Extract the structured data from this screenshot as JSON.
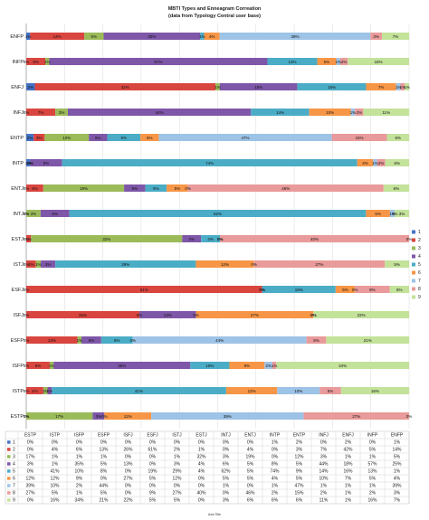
{
  "chart_data": {
    "type": "bar",
    "stacked": "percent",
    "orientation": "horizontal",
    "title": "MBTI Types and Enneagram Correation",
    "subtitle": "(data from Typology Central user base)",
    "xlabel": "Axis Title",
    "ylabel": "",
    "categories": [
      "ENFP",
      "INFP",
      "ENFJ",
      "INFJ",
      "ENTP",
      "INTP",
      "ENTJ",
      "INTJ",
      "ESTJ",
      "ISTJ",
      "ESFJ",
      "ISFJ",
      "ESFP",
      "ISFP",
      "ISTP",
      "ESTP"
    ],
    "colors": [
      "#4472c4",
      "#d9453f",
      "#9bbb59",
      "#7e57a8",
      "#4bacc6",
      "#f79646",
      "#9dc3e6",
      "#e99a9a",
      "#c3e29a"
    ],
    "series": [
      {
        "name": "1",
        "values": [
          1,
          0,
          2,
          0,
          2,
          1,
          0,
          0,
          0,
          0,
          0,
          0,
          0,
          0,
          0,
          0
        ]
      },
      {
        "name": "2",
        "values": [
          14,
          5,
          42,
          7,
          3,
          0,
          4,
          0,
          1,
          2,
          61,
          26,
          13,
          6,
          4,
          0
        ]
      },
      {
        "name": "3",
        "values": [
          5,
          1,
          1,
          3,
          12,
          0,
          19,
          3,
          32,
          1,
          0,
          0,
          1,
          1,
          1,
          17
        ]
      },
      {
        "name": "4",
        "values": [
          25,
          57,
          18,
          44,
          5,
          8,
          5,
          6,
          4,
          3,
          0,
          13,
          5,
          35,
          1,
          3
        ]
      },
      {
        "name": "5",
        "values": [
          1,
          13,
          16,
          14,
          9,
          74,
          5,
          62,
          4,
          29,
          19,
          0,
          8,
          10,
          41,
          0
        ]
      },
      {
        "name": "6",
        "values": [
          4,
          5,
          7,
          10,
          5,
          4,
          5,
          5,
          0,
          12,
          5,
          27,
          0,
          9,
          12,
          12
        ]
      },
      {
        "name": "7",
        "values": [
          39,
          1,
          1,
          1,
          47,
          1,
          0,
          1,
          0,
          0,
          0,
          0,
          44,
          2,
          10,
          39
        ]
      },
      {
        "name": "8",
        "values": [
          3,
          2,
          1,
          2,
          15,
          2,
          46,
          0,
          40,
          27,
          9,
          0,
          5,
          1,
          5,
          27
        ]
      },
      {
        "name": "9",
        "values": [
          7,
          16,
          1,
          11,
          6,
          6,
          6,
          3,
          0,
          5,
          5,
          22,
          21,
          34,
          16,
          0
        ]
      }
    ],
    "segment_labels": [
      [
        "1%",
        "14%",
        "5%",
        "25%",
        "1%",
        "4%",
        "39%",
        "3%",
        "7%"
      ],
      [
        "0%",
        "5%",
        "1%",
        "57%",
        "13%",
        "5%",
        "1%",
        "2%",
        "16%"
      ],
      [
        "2%",
        "42%",
        "1%",
        "18%",
        "16%",
        "7%",
        "1%",
        "1%",
        "1%"
      ],
      [
        "0%",
        "7%",
        "3%",
        "44%",
        "14%",
        "10%",
        "1%",
        "2%",
        "11%"
      ],
      [
        "2%",
        "3%",
        "12%",
        "5%",
        "9%",
        "5%",
        "47%",
        "15%",
        "6%"
      ],
      [
        "1%",
        "0%",
        "0%",
        "8%",
        "74%",
        "4%",
        "1%",
        "2%",
        "6%"
      ],
      [
        "0%",
        "4%",
        "19%",
        "5%",
        "5%",
        "5%",
        "0%",
        "46%",
        "6%"
      ],
      [
        "0%",
        "0%",
        "3%",
        "6%",
        "62%",
        "5%",
        "1%",
        "0%",
        "3%"
      ],
      [
        "0%",
        "1%",
        "32%",
        "4%",
        "4%",
        "0%",
        "0%",
        "40%",
        "0%"
      ],
      [
        "0%",
        "2%",
        "1%",
        "3%",
        "29%",
        "12%",
        "0%",
        "27%",
        "5%"
      ],
      [
        "0%",
        "61%",
        "0%",
        "0%",
        "19%",
        "5%",
        "0%",
        "9%",
        "5%"
      ],
      [
        "0%",
        "26%",
        "0%",
        "13%",
        "0%",
        "27%",
        "0%",
        "0%",
        "22%"
      ],
      [
        "0%",
        "13%",
        "1%",
        "5%",
        "8%",
        "0%",
        "44%",
        "5%",
        "21%"
      ],
      [
        "0%",
        "6%",
        "1%",
        "35%",
        "10%",
        "9%",
        "2%",
        "1%",
        "34%"
      ],
      [
        "0%",
        "4%",
        "1%",
        "1%",
        "41%",
        "12%",
        "10%",
        "5%",
        "16%"
      ],
      [
        "0%",
        "0%",
        "17%",
        "3%",
        "0%",
        "12%",
        "39%",
        "27%",
        "0%"
      ]
    ],
    "table_columns": [
      "ESTP",
      "ISTP",
      "ISFP",
      "ESFP",
      "ISFJ",
      "ESFJ",
      "ISTJ",
      "ESTJ",
      "INTJ",
      "ENTJ",
      "INTP",
      "ENTP",
      "INFJ",
      "ENFJ",
      "INFP",
      "ENFP"
    ],
    "table_rows": [
      {
        "name": "1",
        "values": [
          "0%",
          "0%",
          "0%",
          "0%",
          "0%",
          "0%",
          "0%",
          "0%",
          "0%",
          "0%",
          "1%",
          "2%",
          "0%",
          "2%",
          "0%",
          "1%"
        ]
      },
      {
        "name": "2",
        "values": [
          "0%",
          "4%",
          "6%",
          "13%",
          "26%",
          "61%",
          "2%",
          "1%",
          "0%",
          "4%",
          "0%",
          "3%",
          "7%",
          "42%",
          "5%",
          "14%"
        ]
      },
      {
        "name": "3",
        "values": [
          "17%",
          "1%",
          "1%",
          "1%",
          "0%",
          "0%",
          "1%",
          "32%",
          "3%",
          "19%",
          "0%",
          "12%",
          "3%",
          "1%",
          "1%",
          "5%"
        ]
      },
      {
        "name": "4",
        "values": [
          "3%",
          "1%",
          "35%",
          "5%",
          "13%",
          "0%",
          "3%",
          "4%",
          "6%",
          "5%",
          "8%",
          "5%",
          "44%",
          "18%",
          "57%",
          "25%"
        ]
      },
      {
        "name": "5",
        "values": [
          "0%",
          "41%",
          "10%",
          "8%",
          "0%",
          "19%",
          "29%",
          "4%",
          "62%",
          "5%",
          "74%",
          "9%",
          "14%",
          "16%",
          "13%",
          "1%"
        ]
      },
      {
        "name": "6",
        "values": [
          "12%",
          "12%",
          "9%",
          "0%",
          "27%",
          "5%",
          "12%",
          "0%",
          "5%",
          "5%",
          "4%",
          "5%",
          "10%",
          "7%",
          "5%",
          "4%"
        ]
      },
      {
        "name": "7",
        "values": [
          "39%",
          "10%",
          "2%",
          "44%",
          "0%",
          "0%",
          "0%",
          "0%",
          "1%",
          "0%",
          "1%",
          "47%",
          "1%",
          "1%",
          "1%",
          "39%"
        ]
      },
      {
        "name": "8",
        "values": [
          "27%",
          "5%",
          "1%",
          "5%",
          "0%",
          "9%",
          "27%",
          "40%",
          "0%",
          "46%",
          "2%",
          "15%",
          "2%",
          "1%",
          "2%",
          "3%"
        ]
      },
      {
        "name": "9",
        "values": [
          "0%",
          "16%",
          "34%",
          "21%",
          "22%",
          "5%",
          "5%",
          "0%",
          "3%",
          "6%",
          "6%",
          "6%",
          "11%",
          "1%",
          "16%",
          "7%"
        ]
      }
    ],
    "xlim": [
      0,
      100
    ],
    "grid": true,
    "legend_position": "right"
  }
}
